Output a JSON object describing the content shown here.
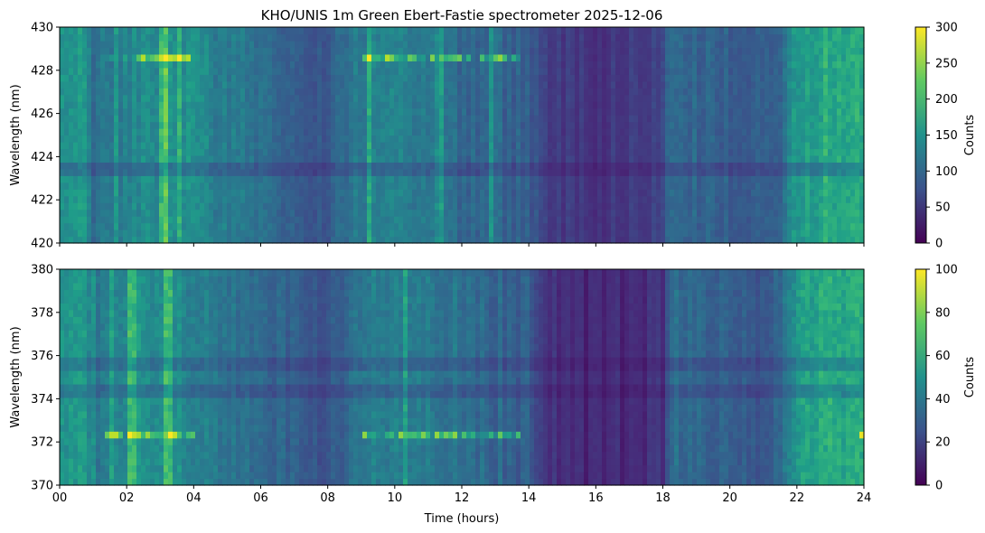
{
  "title": "KHO/UNIS 1m Green Ebert-Fastie spectrometer 2025-12-06",
  "chart_data": [
    {
      "type": "heatmap",
      "name": "upper-panel",
      "xlabel": "",
      "ylabel": "Wavelength (nm)",
      "xlim": [
        0,
        24
      ],
      "ylim": [
        420,
        430
      ],
      "yticks": [
        "420",
        "422",
        "424",
        "426",
        "428",
        "430"
      ],
      "xticks": [
        "00",
        "02",
        "04",
        "06",
        "08",
        "10",
        "12",
        "14",
        "16",
        "18",
        "20",
        "22",
        "24"
      ],
      "xtick_labels_visible": false,
      "colorbar": {
        "label": "Counts",
        "range": [
          0,
          300
        ],
        "ticks": [
          "0",
          "50",
          "100",
          "150",
          "200",
          "250",
          "300"
        ]
      },
      "colormap": "viridis",
      "bright_emission_line_nm": 428.7,
      "dark_band_nm": 423.5,
      "time_profile_counts": [
        {
          "t": 0.0,
          "v": 150
        },
        {
          "t": 0.7,
          "v": 170
        },
        {
          "t": 1.0,
          "v": 110
        },
        {
          "t": 1.5,
          "v": 120
        },
        {
          "t": 2.0,
          "v": 130
        },
        {
          "t": 2.5,
          "v": 150
        },
        {
          "t": 3.0,
          "v": 140
        },
        {
          "t": 3.5,
          "v": 160
        },
        {
          "t": 4.0,
          "v": 140
        },
        {
          "t": 5.0,
          "v": 125
        },
        {
          "t": 6.0,
          "v": 110
        },
        {
          "t": 7.0,
          "v": 90
        },
        {
          "t": 8.0,
          "v": 85
        },
        {
          "t": 9.0,
          "v": 125
        },
        {
          "t": 10.0,
          "v": 135
        },
        {
          "t": 11.0,
          "v": 120
        },
        {
          "t": 12.0,
          "v": 100
        },
        {
          "t": 13.0,
          "v": 95
        },
        {
          "t": 14.0,
          "v": 90
        },
        {
          "t": 14.5,
          "v": 55
        },
        {
          "t": 16.0,
          "v": 45
        },
        {
          "t": 18.0,
          "v": 55
        },
        {
          "t": 18.2,
          "v": 110
        },
        {
          "t": 19.0,
          "v": 95
        },
        {
          "t": 20.0,
          "v": 90
        },
        {
          "t": 21.0,
          "v": 85
        },
        {
          "t": 21.5,
          "v": 100
        },
        {
          "t": 22.0,
          "v": 160
        },
        {
          "t": 23.0,
          "v": 185
        },
        {
          "t": 24.0,
          "v": 180
        }
      ]
    },
    {
      "type": "heatmap",
      "name": "lower-panel",
      "xlabel": "Time (hours)",
      "ylabel": "Wavelength (nm)",
      "xlim": [
        0,
        24
      ],
      "ylim": [
        370,
        380
      ],
      "yticks": [
        "370",
        "372",
        "374",
        "376",
        "378",
        "380"
      ],
      "xticks": [
        "00",
        "02",
        "04",
        "06",
        "08",
        "10",
        "12",
        "14",
        "16",
        "18",
        "20",
        "22",
        "24"
      ],
      "xtick_labels_visible": true,
      "colorbar": {
        "label": "Counts",
        "range": [
          0,
          100
        ],
        "ticks": [
          "0",
          "20",
          "40",
          "60",
          "80",
          "100"
        ]
      },
      "colormap": "viridis",
      "bright_emission_line_nm": 372.4,
      "dark_band_nm": [
        374.3,
        375.6
      ],
      "time_profile_counts": [
        {
          "t": 0.0,
          "v": 50
        },
        {
          "t": 0.7,
          "v": 55
        },
        {
          "t": 1.0,
          "v": 38
        },
        {
          "t": 1.5,
          "v": 40
        },
        {
          "t": 2.0,
          "v": 45
        },
        {
          "t": 2.5,
          "v": 50
        },
        {
          "t": 3.0,
          "v": 45
        },
        {
          "t": 3.5,
          "v": 50
        },
        {
          "t": 4.0,
          "v": 42
        },
        {
          "t": 5.0,
          "v": 40
        },
        {
          "t": 6.0,
          "v": 35
        },
        {
          "t": 7.0,
          "v": 30
        },
        {
          "t": 8.0,
          "v": 25
        },
        {
          "t": 9.0,
          "v": 40
        },
        {
          "t": 10.0,
          "v": 45
        },
        {
          "t": 11.0,
          "v": 40
        },
        {
          "t": 12.0,
          "v": 35
        },
        {
          "t": 13.0,
          "v": 32
        },
        {
          "t": 14.0,
          "v": 30
        },
        {
          "t": 14.5,
          "v": 14
        },
        {
          "t": 16.0,
          "v": 10
        },
        {
          "t": 18.0,
          "v": 14
        },
        {
          "t": 18.2,
          "v": 38
        },
        {
          "t": 19.0,
          "v": 32
        },
        {
          "t": 20.0,
          "v": 30
        },
        {
          "t": 21.0,
          "v": 28
        },
        {
          "t": 21.5,
          "v": 35
        },
        {
          "t": 22.0,
          "v": 55
        },
        {
          "t": 23.0,
          "v": 62
        },
        {
          "t": 24.0,
          "v": 60
        }
      ]
    }
  ]
}
